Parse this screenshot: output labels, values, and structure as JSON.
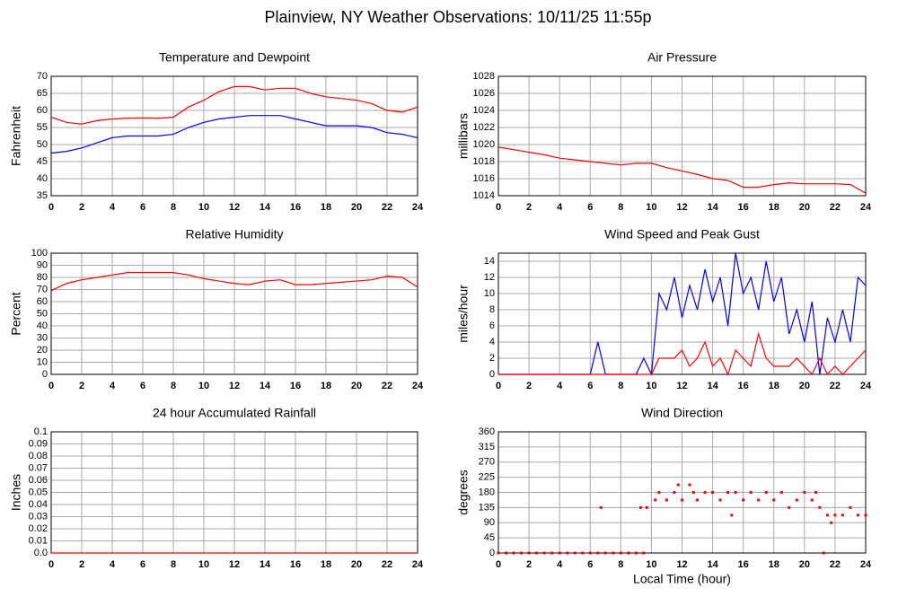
{
  "title": "Plainview, NY Weather Observations: 10/11/25 11:55p",
  "chart_data": [
    {
      "type": "line",
      "title": "Temperature and Dewpoint",
      "ylabel": "Fahrenheit",
      "grid": true,
      "xlim": [
        0,
        24
      ],
      "xticks": [
        0,
        2,
        4,
        6,
        8,
        10,
        12,
        14,
        16,
        18,
        20,
        22,
        24
      ],
      "ylim": [
        35,
        70
      ],
      "yticks": [
        35,
        40,
        45,
        50,
        55,
        60,
        65,
        70
      ],
      "x": [
        0,
        1,
        2,
        3,
        4,
        5,
        6,
        7,
        8,
        9,
        10,
        11,
        12,
        13,
        14,
        15,
        16,
        17,
        18,
        19,
        20,
        21,
        22,
        23,
        24
      ],
      "series": [
        {
          "color": "#ff0000",
          "values": [
            58,
            56.5,
            56,
            57,
            57.5,
            57.7,
            57.8,
            57.7,
            58,
            61,
            63,
            65.5,
            67,
            67,
            66,
            66.5,
            66.5,
            65,
            64,
            63.5,
            63,
            62,
            60,
            59.5,
            61
          ]
        },
        {
          "color": "#0000ff",
          "values": [
            47.5,
            48,
            49,
            50.5,
            52,
            52.5,
            52.5,
            52.5,
            53,
            55,
            56.5,
            57.5,
            58,
            58.5,
            58.5,
            58.5,
            57.5,
            56.5,
            55.5,
            55.5,
            55.5,
            55,
            53.5,
            53,
            52
          ]
        }
      ]
    },
    {
      "type": "line",
      "title": "Air Pressure",
      "ylabel": "millibars",
      "grid": true,
      "xlim": [
        0,
        24
      ],
      "xticks": [
        0,
        2,
        4,
        6,
        8,
        10,
        12,
        14,
        16,
        18,
        20,
        22,
        24
      ],
      "ylim": [
        1014,
        1028
      ],
      "yticks": [
        1014,
        1016,
        1018,
        1020,
        1022,
        1024,
        1026,
        1028
      ],
      "x": [
        0,
        1,
        2,
        3,
        4,
        5,
        6,
        7,
        8,
        9,
        10,
        11,
        12,
        13,
        14,
        15,
        16,
        17,
        18,
        19,
        20,
        21,
        22,
        23,
        24
      ],
      "series": [
        {
          "color": "#ff0000",
          "values": [
            1019.7,
            1019.4,
            1019.1,
            1018.8,
            1018.4,
            1018.2,
            1018.0,
            1017.8,
            1017.6,
            1017.8,
            1017.8,
            1017.3,
            1016.9,
            1016.5,
            1016.0,
            1015.8,
            1015.0,
            1015.0,
            1015.3,
            1015.5,
            1015.4,
            1015.4,
            1015.4,
            1015.3,
            1014.3
          ]
        }
      ]
    },
    {
      "type": "line",
      "title": "Relative Humidity",
      "ylabel": "Percent",
      "grid": true,
      "xlim": [
        0,
        24
      ],
      "xticks": [
        0,
        2,
        4,
        6,
        8,
        10,
        12,
        14,
        16,
        18,
        20,
        22,
        24
      ],
      "ylim": [
        0,
        100
      ],
      "yticks": [
        0,
        10,
        20,
        30,
        40,
        50,
        60,
        70,
        80,
        90,
        100
      ],
      "x": [
        0,
        1,
        2,
        3,
        4,
        5,
        6,
        7,
        8,
        9,
        10,
        11,
        12,
        13,
        14,
        15,
        16,
        17,
        18,
        19,
        20,
        21,
        22,
        23,
        24
      ],
      "series": [
        {
          "color": "#ff0000",
          "values": [
            69,
            75,
            78,
            80,
            82,
            84,
            84,
            84,
            84,
            82,
            79,
            77,
            75,
            74,
            77,
            78,
            74,
            74,
            75,
            76,
            77,
            78,
            81,
            80,
            72
          ]
        }
      ]
    },
    {
      "type": "line",
      "title": "Wind Speed and Peak Gust",
      "ylabel": "miles/hour",
      "grid": true,
      "xlim": [
        0,
        24
      ],
      "xticks": [
        0,
        2,
        4,
        6,
        8,
        10,
        12,
        14,
        16,
        18,
        20,
        22,
        24
      ],
      "ylim": [
        0,
        15
      ],
      "yticks": [
        0,
        2,
        4,
        6,
        8,
        10,
        12,
        14
      ],
      "x": [
        0,
        0.5,
        1,
        1.5,
        2,
        2.5,
        3,
        3.5,
        4,
        4.5,
        5,
        5.5,
        6,
        6.5,
        7,
        7.5,
        8,
        8.5,
        9,
        9.5,
        10,
        10.5,
        11,
        11.5,
        12,
        12.5,
        13,
        13.5,
        14,
        14.5,
        15,
        15.5,
        16,
        16.5,
        17,
        17.5,
        18,
        18.5,
        19,
        19.5,
        20,
        20.5,
        21,
        21.5,
        22,
        22.5,
        23,
        23.5,
        24
      ],
      "series": [
        {
          "color": "#0000ff",
          "values": [
            0,
            0,
            0,
            0,
            0,
            0,
            0,
            0,
            0,
            0,
            0,
            0,
            0,
            4,
            0,
            0,
            0,
            0,
            0,
            2,
            0,
            10,
            8,
            12,
            7,
            11,
            8,
            13,
            9,
            12,
            6,
            15,
            10,
            12,
            8,
            14,
            9,
            12,
            5,
            8,
            4,
            9,
            0,
            7,
            4,
            8,
            4,
            12,
            11
          ]
        },
        {
          "color": "#ff0000",
          "values": [
            0,
            0,
            0,
            0,
            0,
            0,
            0,
            0,
            0,
            0,
            0,
            0,
            0,
            0,
            0,
            0,
            0,
            0,
            0,
            0,
            0,
            2,
            2,
            2,
            3,
            1,
            2,
            4,
            1,
            2,
            0,
            3,
            2,
            1,
            5,
            2,
            1,
            1,
            1,
            2,
            1,
            0,
            2,
            0,
            1,
            0,
            1,
            2,
            3
          ]
        }
      ]
    },
    {
      "type": "line",
      "title": "24 hour Accumulated Rainfall",
      "ylabel": "Inches",
      "grid": true,
      "xlim": [
        0,
        24
      ],
      "xticks": [
        0,
        2,
        4,
        6,
        8,
        10,
        12,
        14,
        16,
        18,
        20,
        22,
        24
      ],
      "ylim": [
        0,
        0.1
      ],
      "yticks": [
        {
          "value": 0,
          "label": "0.0"
        },
        0.01,
        0.02,
        0.03,
        0.04,
        0.05,
        0.06,
        0.07,
        0.08,
        0.09,
        0.1
      ],
      "x": [
        0,
        24
      ],
      "series": [
        {
          "color": "#ff0000",
          "values": [
            0,
            0
          ]
        }
      ]
    },
    {
      "type": "scatter",
      "title": "Wind Direction",
      "ylabel": "degrees",
      "xlabel": "Local Time (hour)",
      "grid": true,
      "xlim": [
        0,
        24
      ],
      "xticks": [
        0,
        2,
        4,
        6,
        8,
        10,
        12,
        14,
        16,
        18,
        20,
        22,
        24
      ],
      "ylim": [
        0,
        360
      ],
      "yticks": [
        0,
        45,
        90,
        135,
        180,
        225,
        270,
        315,
        360
      ],
      "x": [
        0,
        0.5,
        1,
        1.5,
        2,
        2.5,
        3,
        3.5,
        4,
        4.5,
        5,
        5.5,
        6,
        6.5,
        6.7,
        7,
        7.5,
        8,
        8.5,
        9,
        9.3,
        9.5,
        9.7,
        10.25,
        10.5,
        11,
        11.5,
        11.75,
        12,
        12.5,
        12.75,
        13,
        13.5,
        14,
        14.5,
        15,
        15.25,
        15.5,
        16,
        16.5,
        17,
        17.5,
        18,
        18.5,
        19,
        19.5,
        20,
        20.5,
        20.75,
        21,
        21.25,
        21.5,
        21.75,
        22,
        22.5,
        23,
        23.5,
        24
      ],
      "series": [
        {
          "color": "#ff0000",
          "values": [
            0,
            0,
            0,
            0,
            0,
            0,
            0,
            0,
            0,
            0,
            0,
            0,
            0,
            0,
            135,
            0,
            0,
            0,
            0,
            0,
            135,
            0,
            135,
            157.5,
            180,
            157.5,
            180,
            202.5,
            157.5,
            202.5,
            180,
            157.5,
            180,
            180,
            157.5,
            180,
            112.5,
            180,
            157.5,
            180,
            157.5,
            180,
            157.5,
            180,
            135,
            157.5,
            180,
            157.5,
            180,
            135,
            0,
            112.5,
            90,
            112.5,
            112.5,
            135,
            112.5,
            112.5
          ]
        }
      ]
    }
  ]
}
